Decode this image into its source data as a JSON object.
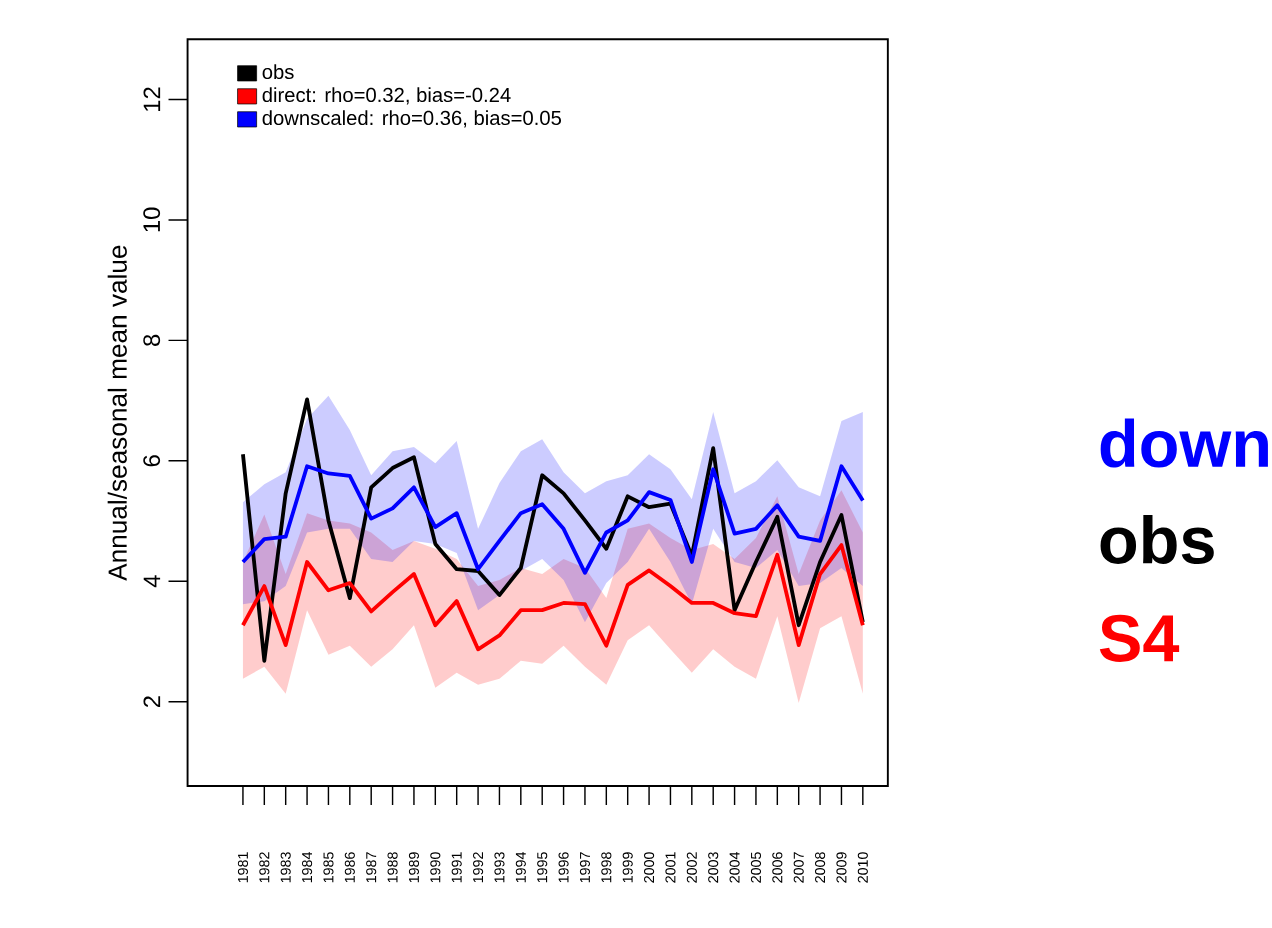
{
  "chart_data": {
    "type": "line",
    "categories": [
      "1981",
      "1982",
      "1983",
      "1984",
      "1985",
      "1986",
      "1987",
      "1988",
      "1989",
      "1990",
      "1991",
      "1992",
      "1993",
      "1994",
      "1995",
      "1996",
      "1997",
      "1998",
      "1999",
      "2000",
      "2001",
      "2002",
      "2003",
      "2004",
      "2005",
      "2006",
      "2007",
      "2008",
      "2009",
      "2010"
    ],
    "ylabel": "Annual/seasonal mean value",
    "ylim": [
      0.6,
      13.0
    ],
    "yticks": [
      2,
      4,
      6,
      8,
      10,
      12
    ],
    "legend": "top left",
    "series": [
      {
        "name": "obs",
        "color": "#000000",
        "values": [
          6.11,
          2.68,
          5.46,
          7.02,
          5.01,
          3.72,
          5.56,
          5.88,
          6.06,
          4.62,
          4.2,
          4.17,
          3.77,
          4.22,
          5.76,
          5.46,
          5.01,
          4.54,
          5.41,
          5.23,
          5.29,
          4.42,
          6.21,
          3.52,
          4.32,
          5.07,
          3.27,
          4.32,
          5.1,
          3.32
        ]
      },
      {
        "name": "direct: rho=0.32, bias=-0.24",
        "color": "#ff0000",
        "values": [
          3.27,
          3.92,
          2.94,
          4.32,
          3.85,
          3.97,
          3.5,
          3.82,
          4.12,
          3.27,
          3.67,
          2.87,
          3.1,
          3.52,
          3.52,
          3.64,
          3.62,
          2.93,
          3.94,
          4.18,
          3.92,
          3.64,
          3.64,
          3.47,
          3.42,
          4.44,
          2.94,
          4.12,
          4.6,
          3.27
        ],
        "upper": [
          4.32,
          5.11,
          4.12,
          5.13,
          5.01,
          4.96,
          4.81,
          4.52,
          4.67,
          4.54,
          4.37,
          3.92,
          4.02,
          4.22,
          4.12,
          4.37,
          4.22,
          3.72,
          4.87,
          4.96,
          4.72,
          4.52,
          4.62,
          4.37,
          4.72,
          5.41,
          4.12,
          5.01,
          5.51,
          4.81
        ],
        "lower": [
          2.38,
          2.58,
          2.13,
          3.52,
          2.78,
          2.93,
          2.58,
          2.87,
          3.27,
          2.23,
          2.48,
          2.28,
          2.38,
          2.68,
          2.63,
          2.93,
          2.58,
          2.28,
          3.02,
          3.27,
          2.87,
          2.48,
          2.87,
          2.58,
          2.38,
          3.42,
          1.98,
          3.22,
          3.42,
          2.13
        ]
      },
      {
        "name": "downscaled: rho=0.36, bias=0.05",
        "color": "#0000ff",
        "values": [
          4.32,
          4.7,
          4.74,
          5.91,
          5.79,
          5.75,
          5.04,
          5.21,
          5.56,
          4.9,
          5.13,
          4.2,
          4.67,
          5.13,
          5.28,
          4.87,
          4.14,
          4.81,
          5.01,
          5.48,
          5.35,
          4.32,
          5.86,
          4.79,
          4.87,
          5.26,
          4.74,
          4.67,
          5.91,
          5.34
        ],
        "upper": [
          5.31,
          5.61,
          5.81,
          6.7,
          7.08,
          6.51,
          5.76,
          6.16,
          6.23,
          5.96,
          6.33,
          4.87,
          5.63,
          6.16,
          6.36,
          5.81,
          5.46,
          5.66,
          5.76,
          6.11,
          5.86,
          5.36,
          6.81,
          5.46,
          5.66,
          6.01,
          5.56,
          5.41,
          6.66,
          6.81
        ],
        "lower": [
          3.62,
          3.67,
          3.92,
          4.81,
          4.87,
          4.87,
          4.37,
          4.32,
          4.67,
          4.62,
          4.47,
          3.52,
          3.77,
          4.17,
          4.37,
          4.02,
          3.32,
          3.97,
          4.32,
          4.87,
          4.32,
          3.62,
          4.87,
          4.32,
          4.22,
          4.52,
          3.92,
          3.97,
          4.22,
          3.92
        ]
      }
    ],
    "annotations": [
      "down",
      "obs",
      "S4"
    ]
  }
}
